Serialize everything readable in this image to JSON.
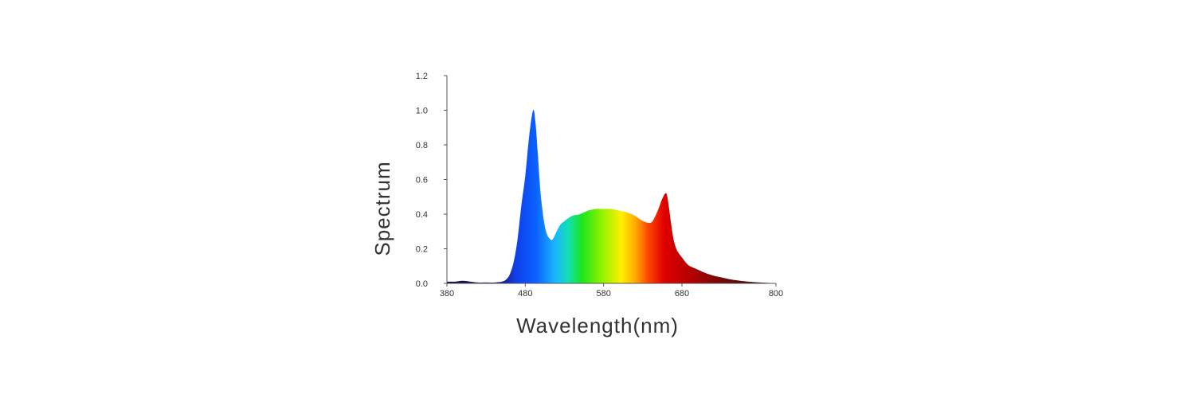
{
  "chart_data": {
    "type": "area",
    "title": "",
    "xlabel": "Wavelength(nm)",
    "ylabel": "Spectrum",
    "xlim": [
      380,
      800
    ],
    "ylim": [
      0,
      1.2
    ],
    "x_ticks": [
      "380",
      "480",
      "580",
      "680",
      "800"
    ],
    "y_ticks": [
      "0.0",
      "0.2",
      "0.4",
      "0.6",
      "0.8",
      "1.0",
      "1.2"
    ],
    "grid": false,
    "legend": "none",
    "fill": "visible-spectrum gradient",
    "series": [
      {
        "x": [
          380,
          390,
          400,
          410,
          420,
          430,
          440,
          450,
          455,
          460,
          465,
          470,
          475,
          480,
          485,
          490,
          493,
          496,
          499,
          502,
          505,
          508,
          511,
          514,
          517,
          520,
          525,
          530,
          540,
          550,
          560,
          570,
          580,
          590,
          600,
          610,
          620,
          630,
          640,
          645,
          650,
          655,
          660,
          663,
          666,
          669,
          672,
          675,
          680,
          685,
          690,
          700,
          710,
          720,
          730,
          740,
          750,
          760,
          770,
          780,
          790,
          800
        ],
        "values": [
          0.01,
          0.01,
          0.015,
          0.01,
          0.005,
          0.005,
          0.005,
          0.01,
          0.02,
          0.05,
          0.12,
          0.25,
          0.45,
          0.62,
          0.85,
          1.0,
          0.93,
          0.75,
          0.55,
          0.42,
          0.33,
          0.28,
          0.26,
          0.25,
          0.27,
          0.3,
          0.34,
          0.36,
          0.39,
          0.4,
          0.42,
          0.43,
          0.43,
          0.43,
          0.42,
          0.41,
          0.39,
          0.36,
          0.35,
          0.38,
          0.43,
          0.49,
          0.52,
          0.45,
          0.35,
          0.26,
          0.21,
          0.18,
          0.15,
          0.12,
          0.1,
          0.08,
          0.06,
          0.045,
          0.035,
          0.025,
          0.018,
          0.012,
          0.008,
          0.005,
          0.003,
          0.002
        ]
      }
    ]
  }
}
